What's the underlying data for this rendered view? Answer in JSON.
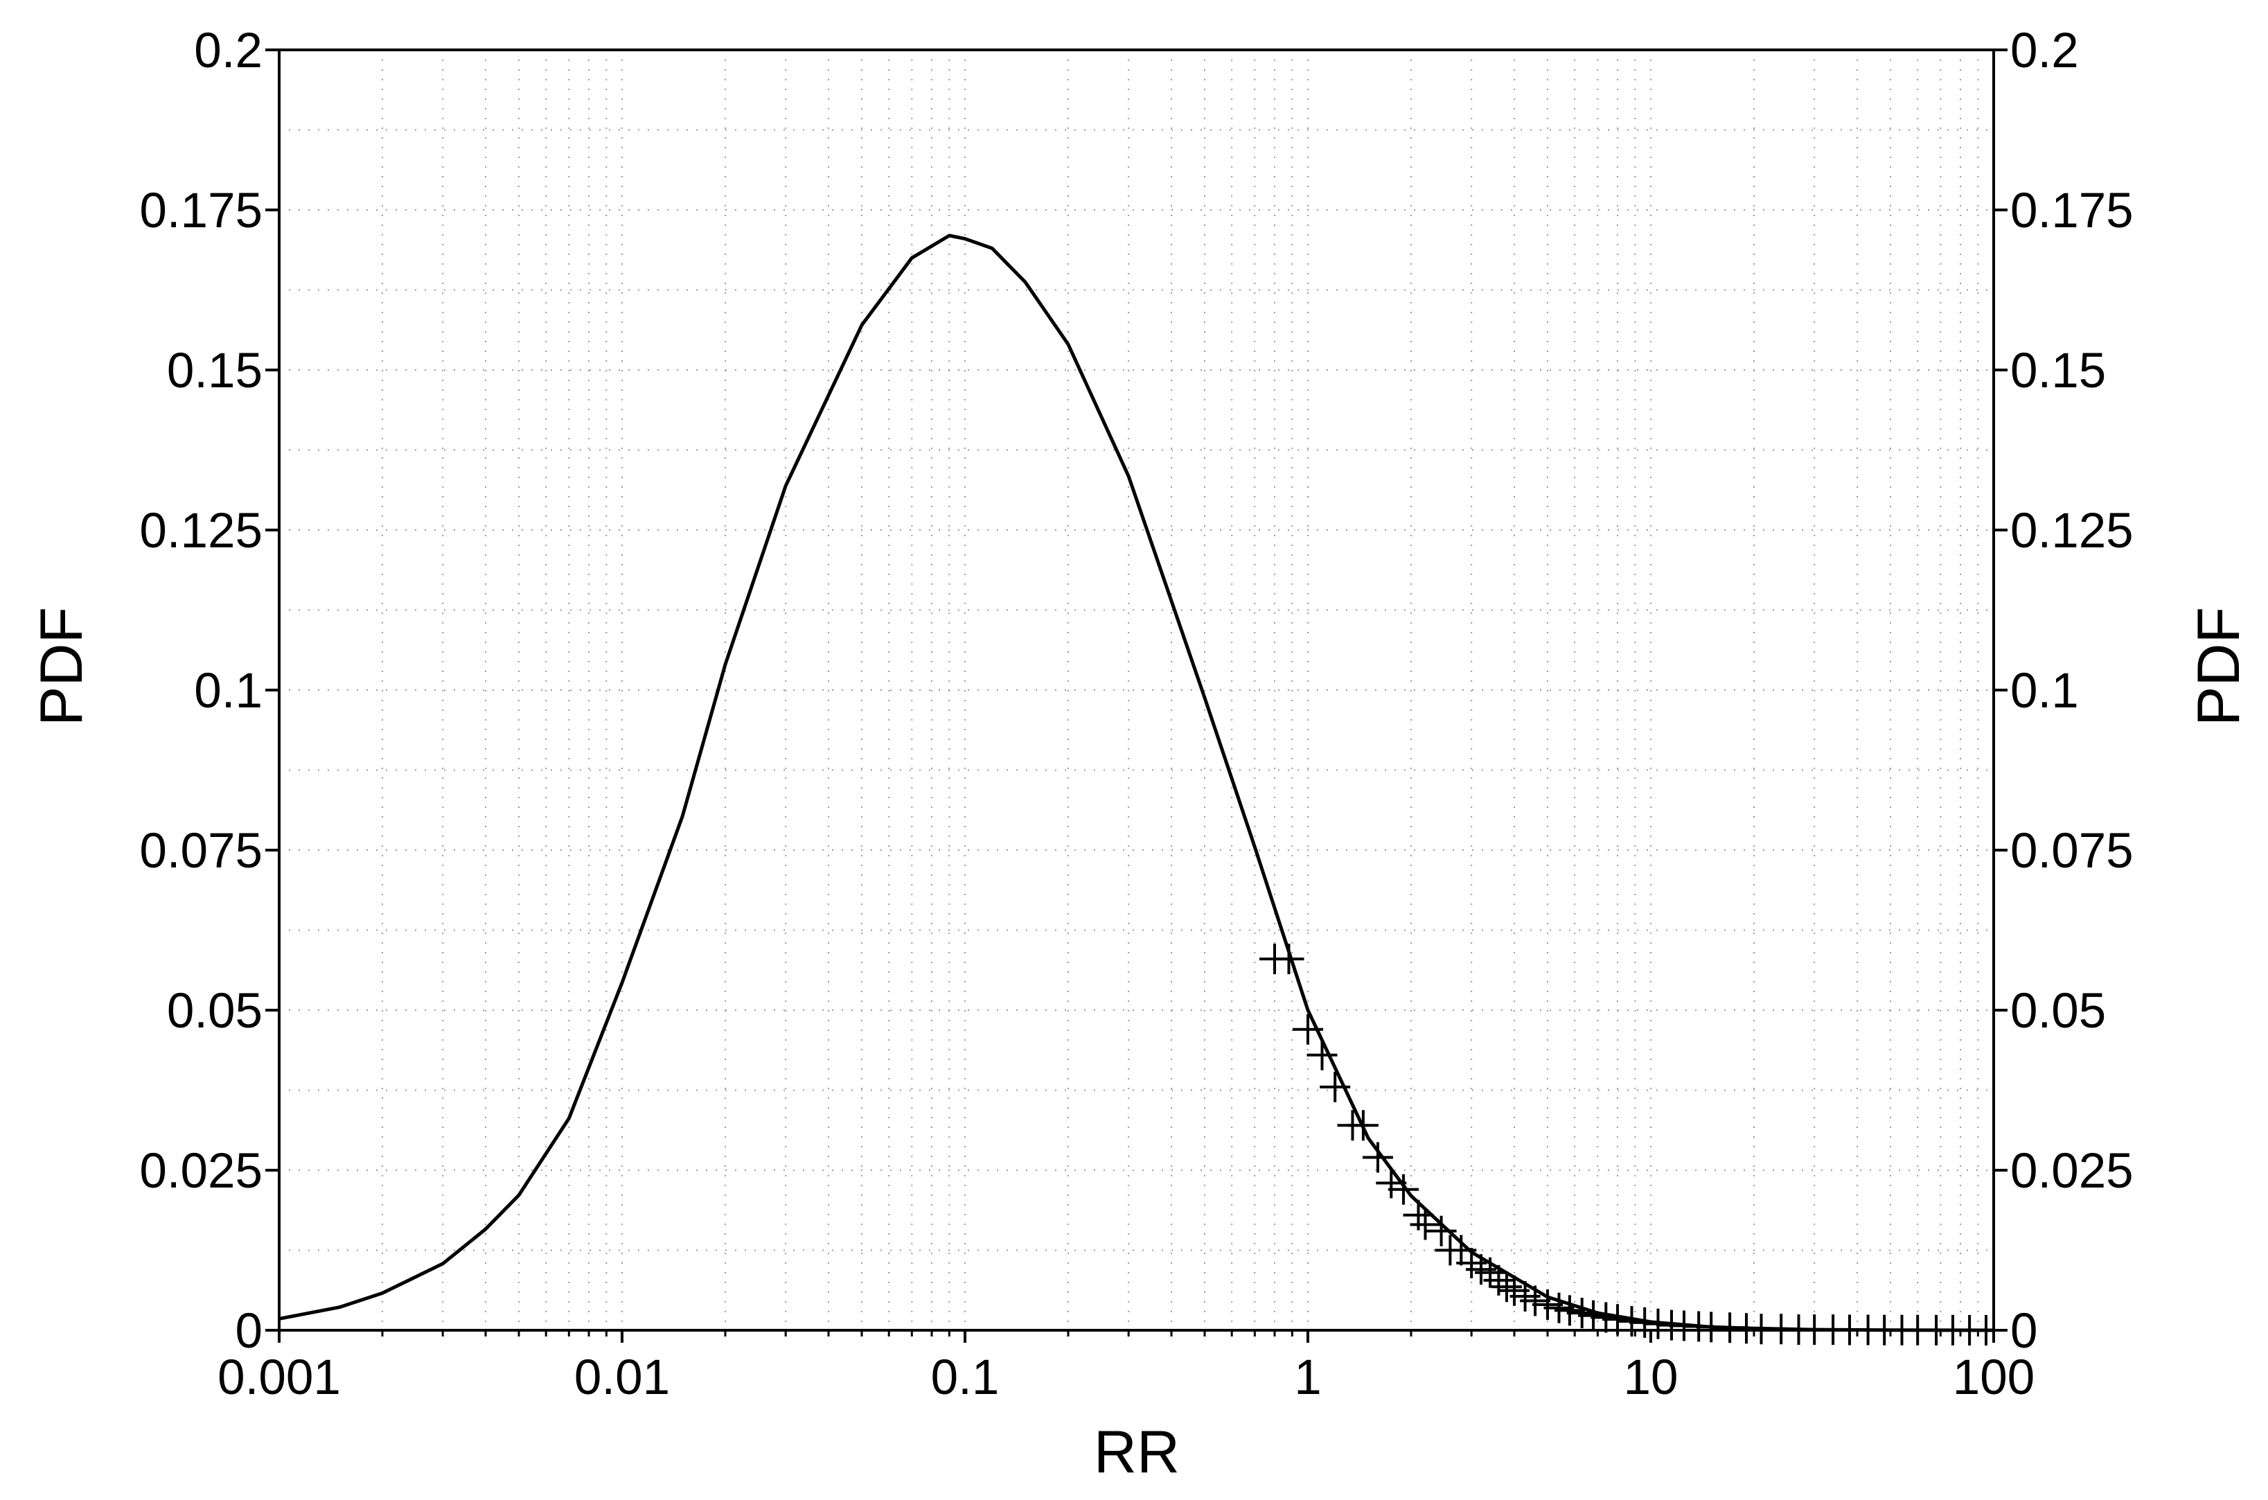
{
  "chart_data": {
    "type": "line",
    "xlabel": "RR",
    "ylabel": "PDF",
    "ylabel_right": "PDF",
    "xscale": "log",
    "xlim": [
      0.001,
      100
    ],
    "ylim": [
      0,
      0.2
    ],
    "grid": true,
    "x_ticks": [
      "0.001",
      "0.01",
      "0.1",
      "1",
      "10",
      "100"
    ],
    "y_ticks": [
      "0",
      "0.025",
      "0.05",
      "0.075",
      "0.1",
      "0.125",
      "0.15",
      "0.175",
      "0.2"
    ],
    "series": [
      {
        "style": "line",
        "color": "#000000",
        "x": [
          0.001,
          0.0015,
          0.002,
          0.003,
          0.004,
          0.005,
          0.007,
          0.01,
          0.015,
          0.02,
          0.03,
          0.05,
          0.07,
          0.09,
          0.1,
          0.12,
          0.15,
          0.2,
          0.3,
          0.5,
          0.7,
          1,
          1.5,
          2,
          3,
          5,
          7,
          10,
          15,
          20,
          30,
          50,
          100
        ],
        "values": [
          0.0018,
          0.0036,
          0.0058,
          0.0104,
          0.0158,
          0.0211,
          0.0331,
          0.0543,
          0.0803,
          0.104,
          0.1319,
          0.157,
          0.1675,
          0.171,
          0.1705,
          0.169,
          0.1637,
          0.154,
          0.1334,
          0.0988,
          0.0755,
          0.05,
          0.03,
          0.021,
          0.0122,
          0.0052,
          0.0027,
          0.0013,
          0.0005,
          0.0003,
          0.0001,
          2e-05,
          0.0
        ]
      },
      {
        "style": "markers",
        "marker": "plus",
        "color": "#000000",
        "x": [
          0.8,
          0.88,
          1.0,
          1.1,
          1.2,
          1.35,
          1.45,
          1.6,
          1.75,
          1.9,
          2.1,
          2.2,
          2.45,
          2.6,
          2.8,
          3.0,
          3.2,
          3.4,
          3.6,
          3.8,
          4.0,
          4.3,
          4.6,
          5.0,
          5.4,
          5.8,
          6.3,
          6.8,
          7.4,
          8.0,
          8.8,
          9.6,
          10.5,
          11.5,
          12.5,
          13.8,
          15,
          17,
          19,
          21,
          24,
          27,
          30,
          34,
          38,
          43,
          48,
          54,
          60,
          68,
          76,
          85,
          95
        ],
        "values": [
          0.058,
          0.058,
          0.047,
          0.043,
          0.038,
          0.032,
          0.032,
          0.027,
          0.023,
          0.022,
          0.018,
          0.0165,
          0.0155,
          0.0125,
          0.0125,
          0.0105,
          0.0095,
          0.009,
          0.0078,
          0.0068,
          0.0062,
          0.0053,
          0.0046,
          0.004,
          0.0035,
          0.0031,
          0.0027,
          0.0023,
          0.002,
          0.0017,
          0.0014,
          0.0012,
          0.001,
          0.0008,
          0.0007,
          0.0006,
          0.0005,
          0.0004,
          0.0003,
          0.0002,
          0.0002,
          0.0001,
          0.0001,
          0.0001,
          5e-05,
          5e-05,
          3e-05,
          2e-05,
          2e-05,
          1e-05,
          1e-05,
          0.0,
          0.0
        ]
      }
    ]
  }
}
